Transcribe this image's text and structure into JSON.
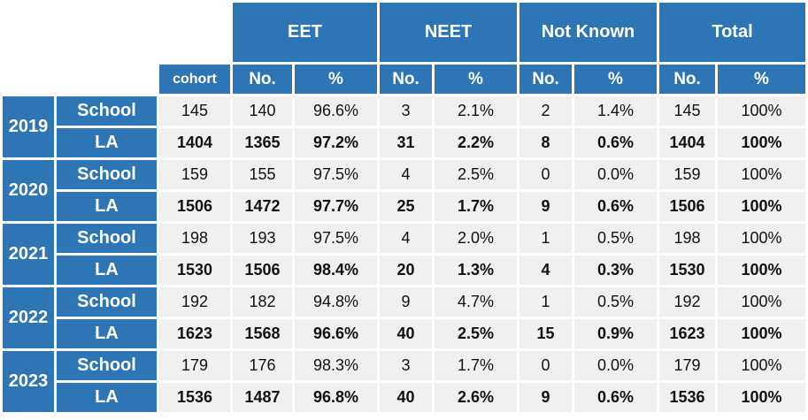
{
  "headers": {
    "groups": [
      "EET",
      "NEET",
      "Not Known",
      "Total"
    ],
    "cohort": "cohort",
    "no": "No.",
    "pct": "%"
  },
  "years": [
    {
      "year": "2019",
      "rows": [
        {
          "label": "School",
          "bold": false,
          "values": [
            "145",
            "140",
            "96.6%",
            "3",
            "2.1%",
            "2",
            "1.4%",
            "145",
            "100%"
          ]
        },
        {
          "label": "LA",
          "bold": true,
          "values": [
            "1404",
            "1365",
            "97.2%",
            "31",
            "2.2%",
            "8",
            "0.6%",
            "1404",
            "100%"
          ]
        }
      ]
    },
    {
      "year": "2020",
      "rows": [
        {
          "label": "School",
          "bold": false,
          "values": [
            "159",
            "155",
            "97.5%",
            "4",
            "2.5%",
            "0",
            "0.0%",
            "159",
            "100%"
          ]
        },
        {
          "label": "LA",
          "bold": true,
          "values": [
            "1506",
            "1472",
            "97.7%",
            "25",
            "1.7%",
            "9",
            "0.6%",
            "1506",
            "100%"
          ]
        }
      ]
    },
    {
      "year": "2021",
      "rows": [
        {
          "label": "School",
          "bold": false,
          "values": [
            "198",
            "193",
            "97.5%",
            "4",
            "2.0%",
            "1",
            "0.5%",
            "198",
            "100%"
          ]
        },
        {
          "label": "LA",
          "bold": true,
          "values": [
            "1530",
            "1506",
            "98.4%",
            "20",
            "1.3%",
            "4",
            "0.3%",
            "1530",
            "100%"
          ]
        }
      ]
    },
    {
      "year": "2022",
      "rows": [
        {
          "label": "School",
          "bold": false,
          "values": [
            "192",
            "182",
            "94.8%",
            "9",
            "4.7%",
            "1",
            "0.5%",
            "192",
            "100%"
          ]
        },
        {
          "label": "LA",
          "bold": true,
          "values": [
            "1623",
            "1568",
            "96.6%",
            "40",
            "2.5%",
            "15",
            "0.9%",
            "1623",
            "100%"
          ]
        }
      ]
    },
    {
      "year": "2023",
      "rows": [
        {
          "label": "School",
          "bold": false,
          "values": [
            "179",
            "176",
            "98.3%",
            "3",
            "1.7%",
            "0",
            "0.0%",
            "179",
            "100%"
          ]
        },
        {
          "label": "LA",
          "bold": true,
          "values": [
            "1536",
            "1487",
            "96.8%",
            "40",
            "2.6%",
            "9",
            "0.6%",
            "1536",
            "100%"
          ]
        }
      ]
    }
  ]
}
